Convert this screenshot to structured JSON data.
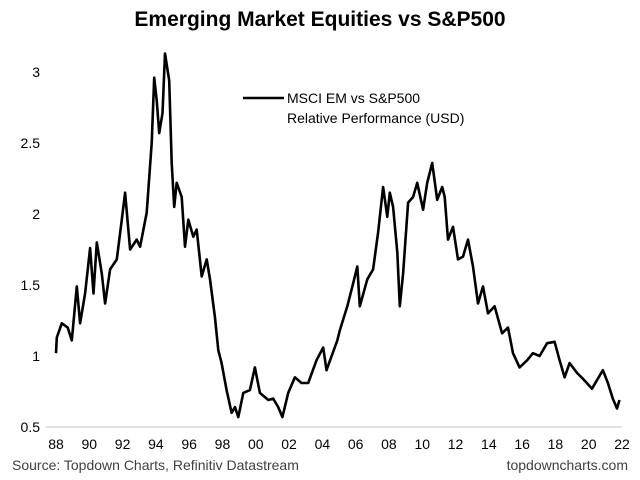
{
  "chart_data": {
    "type": "line",
    "title": "Emerging Market Equities vs S&P500",
    "xlabel": "",
    "ylabel": "",
    "xlim": [
      1988,
      2022
    ],
    "ylim": [
      0.5,
      3.25
    ],
    "x_tick_labels": [
      "88",
      "90",
      "92",
      "94",
      "96",
      "98",
      "00",
      "02",
      "04",
      "06",
      "08",
      "10",
      "12",
      "14",
      "16",
      "18",
      "20",
      "22"
    ],
    "y_tick_labels": [
      "0.5",
      "1",
      "1.5",
      "2",
      "2.5",
      "3"
    ],
    "grid": false,
    "legend_placement": "top-center",
    "series": [
      {
        "name": "MSCI EM vs S&P500",
        "name_line2": "Relative Performance (USD)",
        "color": "#000000",
        "x": [
          1988.0,
          1988.05,
          1988.35,
          1988.7,
          1988.95,
          1989.25,
          1989.45,
          1989.75,
          1990.05,
          1990.25,
          1990.45,
          1990.75,
          1990.95,
          1991.25,
          1991.65,
          1991.95,
          1992.15,
          1992.45,
          1992.85,
          1993.05,
          1993.45,
          1993.75,
          1993.9,
          1994.05,
          1994.2,
          1994.4,
          1994.55,
          1994.8,
          1994.95,
          1995.1,
          1995.25,
          1995.55,
          1995.75,
          1995.95,
          1996.25,
          1996.45,
          1996.75,
          1997.05,
          1997.25,
          1997.55,
          1997.75,
          1997.95,
          1998.25,
          1998.55,
          1998.75,
          1998.95,
          1999.25,
          1999.65,
          1999.95,
          2000.25,
          2000.75,
          2001.05,
          2001.35,
          2001.6,
          2001.95,
          2002.35,
          2002.75,
          2003.15,
          2003.65,
          2004.05,
          2004.25,
          2004.9,
          2005.05,
          2005.5,
          2005.85,
          2006.1,
          2006.25,
          2006.7,
          2007.05,
          2007.35,
          2007.65,
          2007.9,
          2008.05,
          2008.25,
          2008.5,
          2008.65,
          2008.85,
          2009.15,
          2009.45,
          2009.7,
          2010.05,
          2010.3,
          2010.6,
          2010.9,
          2011.2,
          2011.35,
          2011.55,
          2011.85,
          2012.15,
          2012.45,
          2012.75,
          2013.05,
          2013.35,
          2013.65,
          2013.95,
          2014.35,
          2014.8,
          2015.15,
          2015.45,
          2015.85,
          2016.3,
          2016.65,
          2017.05,
          2017.5,
          2017.95,
          2018.25,
          2018.55,
          2018.85,
          2019.3,
          2019.65,
          2020.2,
          2020.5,
          2020.85,
          2021.15,
          2021.45,
          2021.7,
          2021.85
        ],
        "y": [
          1.02,
          1.13,
          1.23,
          1.2,
          1.11,
          1.49,
          1.23,
          1.44,
          1.76,
          1.44,
          1.8,
          1.58,
          1.37,
          1.61,
          1.68,
          1.96,
          2.15,
          1.75,
          1.82,
          1.77,
          2.01,
          2.5,
          2.96,
          2.8,
          2.57,
          2.71,
          3.13,
          2.94,
          2.36,
          2.05,
          2.22,
          2.12,
          1.77,
          1.96,
          1.84,
          1.89,
          1.56,
          1.68,
          1.54,
          1.27,
          1.04,
          0.95,
          0.76,
          0.6,
          0.64,
          0.57,
          0.74,
          0.76,
          0.92,
          0.74,
          0.69,
          0.7,
          0.64,
          0.57,
          0.74,
          0.85,
          0.81,
          0.81,
          0.97,
          1.06,
          0.9,
          1.11,
          1.18,
          1.35,
          1.51,
          1.63,
          1.35,
          1.54,
          1.61,
          1.87,
          2.19,
          1.98,
          2.15,
          2.05,
          1.73,
          1.35,
          1.58,
          2.08,
          2.12,
          2.22,
          2.03,
          2.22,
          2.36,
          2.1,
          2.19,
          2.12,
          1.82,
          1.91,
          1.68,
          1.7,
          1.82,
          1.63,
          1.37,
          1.49,
          1.3,
          1.35,
          1.16,
          1.2,
          1.02,
          0.92,
          0.97,
          1.02,
          1.0,
          1.09,
          1.1,
          0.97,
          0.85,
          0.95,
          0.88,
          0.84,
          0.77,
          0.83,
          0.9,
          0.81,
          0.7,
          0.63,
          0.69
        ]
      }
    ]
  },
  "footer": {
    "source": "Source: Topdown Charts, Refinitiv Datastream",
    "site": "topdowncharts.com"
  }
}
